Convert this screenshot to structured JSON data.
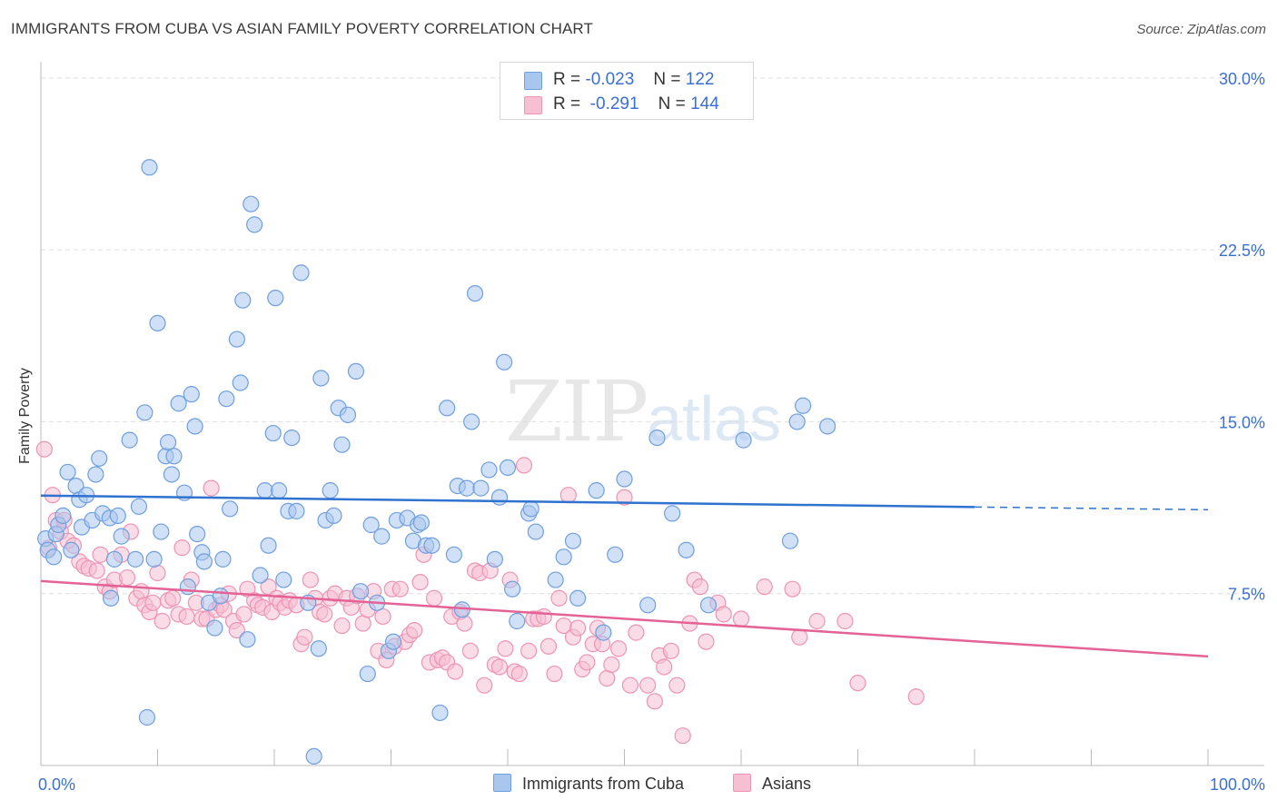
{
  "title": "IMMIGRANTS FROM CUBA VS ASIAN FAMILY POVERTY CORRELATION CHART",
  "source": "Source: ZipAtlas.com",
  "watermark": {
    "zip": "ZIP",
    "atlas": "atlas"
  },
  "legend": {
    "rows": [
      {
        "r_label": "R =",
        "r_value": "-0.023",
        "n_label": "N =",
        "n_value": "122"
      },
      {
        "r_label": "R =",
        "r_value": "-0.291",
        "n_label": "N =",
        "n_value": "144"
      }
    ]
  },
  "bottom_legend": [
    "Immigrants from Cuba",
    "Asians"
  ],
  "chart_data": {
    "type": "scatter",
    "title": "IMMIGRANTS FROM CUBA VS ASIAN FAMILY POVERTY CORRELATION CHART",
    "xlabel": "",
    "ylabel": "Family Poverty",
    "xlim": [
      0,
      100
    ],
    "ylim": [
      0,
      31.5
    ],
    "y_ticks": [
      7.5,
      15.0,
      22.5,
      30.0
    ],
    "y_tick_labels": [
      "7.5%",
      "15.0%",
      "22.5%",
      "30.0%"
    ],
    "x_tick_labels": [
      "0.0%",
      "100.0%"
    ],
    "colors": {
      "cuba_fill": "#a9c6ee",
      "cuba_stroke": "#6f9fe0",
      "cuba_line": "#2f72d0",
      "asians_fill": "#f6bfd2",
      "asians_stroke": "#ee93b4",
      "asians_line": "#e46396",
      "tick_label": "#3b6fd4",
      "grid": "#dddddd"
    },
    "series": [
      {
        "name": "Immigrants from Cuba",
        "trend": {
          "x": [
            0,
            80
          ],
          "y": [
            11.78,
            11.28
          ],
          "dash_to": 100,
          "dash_end_y": 11.16
        },
        "points": [
          [
            0.4,
            9.9
          ],
          [
            0.6,
            9.4
          ],
          [
            1.1,
            9.1
          ],
          [
            1.3,
            10.1
          ],
          [
            1.5,
            10.5
          ],
          [
            1.9,
            10.9
          ],
          [
            2.3,
            12.8
          ],
          [
            2.6,
            9.4
          ],
          [
            3.0,
            12.2
          ],
          [
            3.3,
            11.6
          ],
          [
            3.5,
            10.4
          ],
          [
            3.9,
            11.8
          ],
          [
            4.4,
            10.7
          ],
          [
            4.7,
            12.7
          ],
          [
            5.0,
            13.4
          ],
          [
            5.3,
            11.0
          ],
          [
            5.9,
            10.8
          ],
          [
            6.0,
            7.3
          ],
          [
            6.3,
            9.0
          ],
          [
            6.6,
            10.9
          ],
          [
            6.9,
            10.0
          ],
          [
            7.6,
            14.2
          ],
          [
            8.1,
            9.0
          ],
          [
            8.4,
            11.3
          ],
          [
            8.9,
            15.4
          ],
          [
            9.1,
            2.1
          ],
          [
            9.3,
            26.1
          ],
          [
            9.7,
            9.0
          ],
          [
            10.0,
            19.3
          ],
          [
            10.3,
            10.2
          ],
          [
            10.7,
            13.5
          ],
          [
            10.9,
            14.1
          ],
          [
            11.2,
            12.7
          ],
          [
            11.4,
            13.5
          ],
          [
            11.8,
            15.8
          ],
          [
            12.3,
            11.9
          ],
          [
            12.6,
            7.8
          ],
          [
            12.9,
            16.2
          ],
          [
            13.2,
            14.8
          ],
          [
            13.4,
            10.1
          ],
          [
            13.8,
            9.3
          ],
          [
            14.0,
            8.9
          ],
          [
            14.4,
            7.1
          ],
          [
            14.9,
            6.0
          ],
          [
            15.4,
            7.4
          ],
          [
            15.6,
            9.0
          ],
          [
            15.9,
            16.0
          ],
          [
            16.2,
            11.2
          ],
          [
            16.8,
            18.6
          ],
          [
            17.1,
            16.7
          ],
          [
            17.3,
            20.3
          ],
          [
            17.7,
            5.5
          ],
          [
            18.0,
            24.5
          ],
          [
            18.3,
            23.6
          ],
          [
            18.8,
            8.3
          ],
          [
            19.2,
            12.0
          ],
          [
            19.5,
            9.6
          ],
          [
            19.9,
            14.5
          ],
          [
            20.1,
            20.4
          ],
          [
            20.4,
            12.0
          ],
          [
            20.8,
            8.1
          ],
          [
            21.2,
            11.1
          ],
          [
            21.5,
            14.3
          ],
          [
            21.9,
            11.1
          ],
          [
            22.3,
            21.5
          ],
          [
            22.9,
            7.1
          ],
          [
            23.4,
            0.4
          ],
          [
            23.8,
            5.1
          ],
          [
            24.0,
            16.9
          ],
          [
            24.4,
            10.7
          ],
          [
            24.8,
            12.0
          ],
          [
            25.1,
            10.9
          ],
          [
            25.5,
            15.6
          ],
          [
            25.8,
            14.0
          ],
          [
            26.3,
            15.3
          ],
          [
            27.0,
            17.2
          ],
          [
            27.4,
            7.6
          ],
          [
            28.0,
            4.0
          ],
          [
            28.3,
            10.5
          ],
          [
            28.8,
            7.1
          ],
          [
            29.2,
            10.0
          ],
          [
            29.8,
            5.0
          ],
          [
            30.2,
            5.4
          ],
          [
            30.5,
            10.7
          ],
          [
            31.4,
            10.8
          ],
          [
            31.9,
            9.8
          ],
          [
            32.3,
            10.5
          ],
          [
            32.6,
            10.6
          ],
          [
            33.0,
            9.6
          ],
          [
            33.5,
            9.6
          ],
          [
            34.2,
            2.3
          ],
          [
            34.8,
            15.6
          ],
          [
            35.4,
            9.2
          ],
          [
            35.7,
            12.2
          ],
          [
            36.1,
            6.8
          ],
          [
            36.5,
            12.1
          ],
          [
            36.9,
            15.0
          ],
          [
            37.2,
            20.6
          ],
          [
            37.7,
            12.1
          ],
          [
            38.4,
            12.9
          ],
          [
            38.9,
            9.0
          ],
          [
            39.3,
            11.7
          ],
          [
            39.7,
            17.6
          ],
          [
            40.0,
            13.0
          ],
          [
            40.4,
            7.7
          ],
          [
            40.8,
            6.3
          ],
          [
            41.8,
            11.0
          ],
          [
            42.0,
            11.2
          ],
          [
            42.4,
            10.2
          ],
          [
            44.1,
            8.1
          ],
          [
            44.8,
            9.1
          ],
          [
            45.6,
            9.8
          ],
          [
            46.0,
            7.3
          ],
          [
            47.6,
            12.0
          ],
          [
            48.2,
            5.8
          ],
          [
            49.2,
            9.2
          ],
          [
            50.0,
            12.5
          ],
          [
            52.0,
            7.0
          ],
          [
            52.8,
            14.3
          ],
          [
            54.1,
            11.0
          ],
          [
            55.3,
            9.4
          ],
          [
            57.2,
            7.0
          ],
          [
            60.2,
            14.2
          ],
          [
            64.2,
            9.8
          ],
          [
            64.8,
            15.0
          ],
          [
            65.3,
            15.7
          ],
          [
            67.4,
            14.8
          ]
        ]
      },
      {
        "name": "Asians",
        "trend": {
          "x": [
            0,
            100
          ],
          "y": [
            8.05,
            4.76
          ]
        },
        "points": [
          [
            0.3,
            13.8
          ],
          [
            0.7,
            9.5
          ],
          [
            1.0,
            11.8
          ],
          [
            1.3,
            10.7
          ],
          [
            1.7,
            10.2
          ],
          [
            2.0,
            10.7
          ],
          [
            2.3,
            9.8
          ],
          [
            2.8,
            9.6
          ],
          [
            3.3,
            8.9
          ],
          [
            3.7,
            8.7
          ],
          [
            4.1,
            8.6
          ],
          [
            4.8,
            8.5
          ],
          [
            5.1,
            9.2
          ],
          [
            5.5,
            7.8
          ],
          [
            5.9,
            7.6
          ],
          [
            6.3,
            8.1
          ],
          [
            6.9,
            9.2
          ],
          [
            7.4,
            8.2
          ],
          [
            7.7,
            10.2
          ],
          [
            8.2,
            7.3
          ],
          [
            8.6,
            7.6
          ],
          [
            8.9,
            7.0
          ],
          [
            9.3,
            6.7
          ],
          [
            9.6,
            7.1
          ],
          [
            10.0,
            8.4
          ],
          [
            10.4,
            6.3
          ],
          [
            10.9,
            7.2
          ],
          [
            11.3,
            7.3
          ],
          [
            11.8,
            6.6
          ],
          [
            12.1,
            9.5
          ],
          [
            12.5,
            6.5
          ],
          [
            12.9,
            8.1
          ],
          [
            13.3,
            7.1
          ],
          [
            13.8,
            6.4
          ],
          [
            14.2,
            6.4
          ],
          [
            14.6,
            12.1
          ],
          [
            15.0,
            6.8
          ],
          [
            15.4,
            7.0
          ],
          [
            15.7,
            6.8
          ],
          [
            16.1,
            7.5
          ],
          [
            16.5,
            6.3
          ],
          [
            16.8,
            5.9
          ],
          [
            17.4,
            6.6
          ],
          [
            17.7,
            7.7
          ],
          [
            18.3,
            7.2
          ],
          [
            18.6,
            7.0
          ],
          [
            19.0,
            6.9
          ],
          [
            19.5,
            7.8
          ],
          [
            19.8,
            6.7
          ],
          [
            20.2,
            7.3
          ],
          [
            20.5,
            7.1
          ],
          [
            20.9,
            6.9
          ],
          [
            21.3,
            7.2
          ],
          [
            21.9,
            7.0
          ],
          [
            22.3,
            5.3
          ],
          [
            22.6,
            5.6
          ],
          [
            23.1,
            8.1
          ],
          [
            23.5,
            7.3
          ],
          [
            23.9,
            6.7
          ],
          [
            24.3,
            6.6
          ],
          [
            24.8,
            7.3
          ],
          [
            25.2,
            7.5
          ],
          [
            25.8,
            6.1
          ],
          [
            26.2,
            7.3
          ],
          [
            26.6,
            6.9
          ],
          [
            27.1,
            7.4
          ],
          [
            27.6,
            6.2
          ],
          [
            28.0,
            6.8
          ],
          [
            28.5,
            7.6
          ],
          [
            28.9,
            5.0
          ],
          [
            29.3,
            6.5
          ],
          [
            29.6,
            4.6
          ],
          [
            30.1,
            7.7
          ],
          [
            30.3,
            5.2
          ],
          [
            30.8,
            7.7
          ],
          [
            31.2,
            5.4
          ],
          [
            31.6,
            5.7
          ],
          [
            32.0,
            5.9
          ],
          [
            32.5,
            8.0
          ],
          [
            32.8,
            9.2
          ],
          [
            33.3,
            4.5
          ],
          [
            33.7,
            7.3
          ],
          [
            34.0,
            4.6
          ],
          [
            34.4,
            4.7
          ],
          [
            34.8,
            4.5
          ],
          [
            35.2,
            6.5
          ],
          [
            35.5,
            4.1
          ],
          [
            35.9,
            6.7
          ],
          [
            36.3,
            6.2
          ],
          [
            36.8,
            5.0
          ],
          [
            37.2,
            8.5
          ],
          [
            37.6,
            8.4
          ],
          [
            38.0,
            3.5
          ],
          [
            38.5,
            8.5
          ],
          [
            38.9,
            4.4
          ],
          [
            39.3,
            4.3
          ],
          [
            39.8,
            5.1
          ],
          [
            40.2,
            8.1
          ],
          [
            40.6,
            4.1
          ],
          [
            41.0,
            4.0
          ],
          [
            41.4,
            13.1
          ],
          [
            41.8,
            5.0
          ],
          [
            42.2,
            6.4
          ],
          [
            42.6,
            6.4
          ],
          [
            43.1,
            6.5
          ],
          [
            43.5,
            5.2
          ],
          [
            44.0,
            4.0
          ],
          [
            44.4,
            7.3
          ],
          [
            44.8,
            6.1
          ],
          [
            45.2,
            11.8
          ],
          [
            45.6,
            5.6
          ],
          [
            46.0,
            6.0
          ],
          [
            46.4,
            4.2
          ],
          [
            46.8,
            4.5
          ],
          [
            47.3,
            5.3
          ],
          [
            47.7,
            6.0
          ],
          [
            48.1,
            5.3
          ],
          [
            48.5,
            3.8
          ],
          [
            48.9,
            4.4
          ],
          [
            49.5,
            5.1
          ],
          [
            50.0,
            11.7
          ],
          [
            50.5,
            3.5
          ],
          [
            51.0,
            5.8
          ],
          [
            52.0,
            3.5
          ],
          [
            52.6,
            2.8
          ],
          [
            53.0,
            4.8
          ],
          [
            53.4,
            4.3
          ],
          [
            54.0,
            5.0
          ],
          [
            54.5,
            3.5
          ],
          [
            55.0,
            1.3
          ],
          [
            55.6,
            6.2
          ],
          [
            56.0,
            8.1
          ],
          [
            56.5,
            7.8
          ],
          [
            57.0,
            5.4
          ],
          [
            58.0,
            7.1
          ],
          [
            58.5,
            6.6
          ],
          [
            60.0,
            6.4
          ],
          [
            62.0,
            7.8
          ],
          [
            64.4,
            7.7
          ],
          [
            65.0,
            5.6
          ],
          [
            66.5,
            6.3
          ],
          [
            68.9,
            6.3
          ],
          [
            70.0,
            3.6
          ],
          [
            75.0,
            3.0
          ]
        ]
      }
    ]
  }
}
